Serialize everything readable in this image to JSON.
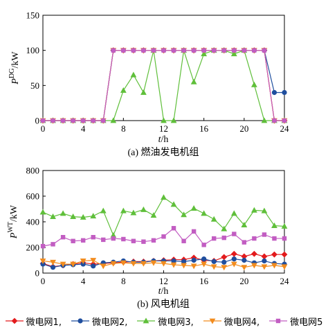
{
  "chart_data": [
    {
      "type": "line",
      "caption": "(a)  燃油发电机组",
      "ylabel_main": "P",
      "ylabel_sup": "DG",
      "ylabel_unit": "/kW",
      "xlabel_main": "t",
      "xlabel_unit": "/h",
      "xlim": [
        0,
        24
      ],
      "ylim": [
        0,
        150
      ],
      "xticks": [
        0,
        4,
        8,
        12,
        16,
        20,
        24
      ],
      "yticks": [
        0,
        50,
        100,
        150
      ],
      "x": [
        0,
        1,
        2,
        3,
        4,
        5,
        6,
        7,
        8,
        9,
        10,
        11,
        12,
        13,
        14,
        15,
        16,
        17,
        18,
        19,
        20,
        21,
        22,
        23,
        24
      ],
      "series": [
        {
          "name": "微电网1",
          "color": "#e31a1c",
          "marker": "diamond",
          "values": [
            0,
            0,
            0,
            0,
            0,
            0,
            0,
            100,
            100,
            100,
            100,
            100,
            100,
            100,
            100,
            100,
            100,
            100,
            100,
            100,
            100,
            100,
            100,
            0,
            0
          ]
        },
        {
          "name": "微电网2",
          "color": "#1f4e9e",
          "marker": "circle",
          "values": [
            0,
            0,
            0,
            0,
            0,
            0,
            0,
            100,
            100,
            100,
            100,
            100,
            100,
            100,
            100,
            100,
            100,
            100,
            100,
            100,
            100,
            100,
            100,
            40,
            40
          ]
        },
        {
          "name": "微电网3",
          "color": "#5fbf3a",
          "marker": "triangle",
          "values": [
            0,
            0,
            0,
            0,
            0,
            0,
            0,
            0,
            43,
            65,
            40,
            100,
            0,
            0,
            100,
            55,
            95,
            100,
            100,
            95,
            100,
            51,
            0,
            0,
            0
          ]
        },
        {
          "name": "微电网4",
          "color": "#f28c1e",
          "marker": "triangle-down",
          "values": [
            0,
            0,
            0,
            0,
            0,
            0,
            0,
            100,
            100,
            100,
            100,
            100,
            100,
            100,
            100,
            100,
            100,
            100,
            100,
            100,
            100,
            100,
            100,
            0,
            0
          ]
        },
        {
          "name": "微电网5",
          "color": "#c25dc2",
          "marker": "square",
          "values": [
            0,
            0,
            0,
            0,
            0,
            0,
            0,
            100,
            100,
            100,
            100,
            100,
            100,
            100,
            100,
            100,
            100,
            100,
            100,
            100,
            100,
            100,
            100,
            0,
            0
          ]
        }
      ]
    },
    {
      "type": "line",
      "caption": "(b)  风电机组",
      "ylabel_main": "P",
      "ylabel_sup": "WT",
      "ylabel_unit": "/kW",
      "xlabel_main": "t",
      "xlabel_unit": "/h",
      "xlim": [
        0,
        24
      ],
      "ylim": [
        0,
        800
      ],
      "xticks": [
        0,
        4,
        8,
        12,
        16,
        20,
        24
      ],
      "yticks": [
        0,
        200,
        400,
        600,
        800
      ],
      "x": [
        0,
        1,
        2,
        3,
        4,
        5,
        6,
        7,
        8,
        9,
        10,
        11,
        12,
        13,
        14,
        15,
        16,
        17,
        18,
        19,
        20,
        21,
        22,
        23,
        24
      ],
      "series": [
        {
          "name": "微电网1",
          "color": "#e31a1c",
          "marker": "diamond",
          "values": [
            75,
            50,
            60,
            70,
            80,
            70,
            75,
            80,
            85,
            90,
            90,
            95,
            100,
            105,
            105,
            120,
            100,
            95,
            125,
            150,
            130,
            150,
            130,
            145,
            145
          ]
        },
        {
          "name": "微电网2",
          "color": "#1f4e9e",
          "marker": "circle",
          "values": [
            70,
            45,
            60,
            65,
            70,
            55,
            80,
            85,
            95,
            85,
            85,
            95,
            95,
            95,
            90,
            100,
            110,
            90,
            85,
            110,
            100,
            80,
            95,
            75,
            70
          ]
        },
        {
          "name": "微电网3",
          "color": "#5fbf3a",
          "marker": "triangle",
          "values": [
            475,
            440,
            465,
            440,
            435,
            445,
            485,
            295,
            485,
            470,
            495,
            450,
            590,
            535,
            455,
            505,
            465,
            420,
            345,
            465,
            375,
            490,
            485,
            370,
            365
          ]
        },
        {
          "name": "微电网4",
          "color": "#f28c1e",
          "marker": "triangle-down",
          "values": [
            95,
            85,
            70,
            70,
            95,
            100,
            55,
            75,
            80,
            75,
            75,
            80,
            75,
            65,
            60,
            55,
            70,
            50,
            45,
            70,
            45,
            60,
            50,
            60,
            50
          ]
        },
        {
          "name": "微电网5",
          "color": "#c25dc2",
          "marker": "square",
          "values": [
            210,
            225,
            280,
            250,
            255,
            280,
            260,
            270,
            265,
            250,
            245,
            255,
            285,
            350,
            250,
            325,
            220,
            270,
            275,
            305,
            240,
            270,
            300,
            270,
            270
          ]
        }
      ]
    }
  ],
  "legend": [
    {
      "label": "微电网1,",
      "color": "#e31a1c",
      "marker": "diamond"
    },
    {
      "label": "微电网2,",
      "color": "#1f4e9e",
      "marker": "circle"
    },
    {
      "label": "微电网3,",
      "color": "#5fbf3a",
      "marker": "triangle"
    },
    {
      "label": "微电网4,",
      "color": "#f28c1e",
      "marker": "triangle-down"
    },
    {
      "label": "微电网5",
      "color": "#c25dc2",
      "marker": "square"
    }
  ]
}
